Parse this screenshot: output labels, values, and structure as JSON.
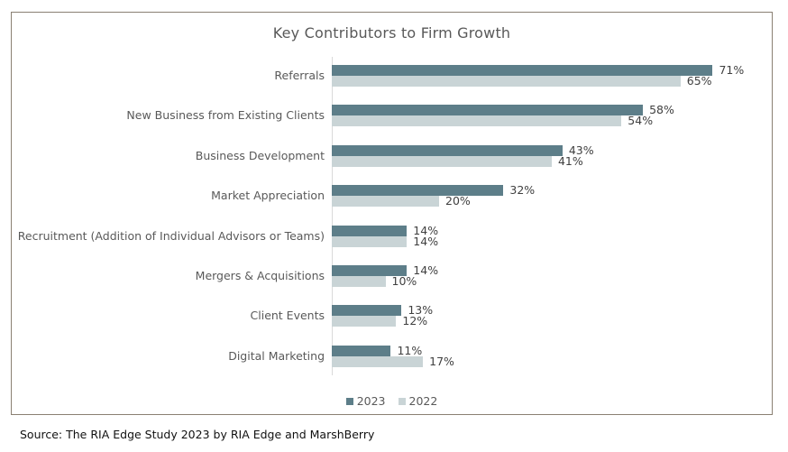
{
  "title": "Key Contributors to Firm Growth",
  "source": "Source: The RIA Edge Study 2023 by RIA Edge and MarshBerry",
  "colors": {
    "bar_2023": "#5d7e89",
    "bar_2022": "#c9d4d6",
    "title_text": "#595959",
    "category_text": "#595959",
    "value_text": "#404040",
    "panel_border": "#8a8073",
    "axis_line": "#d9d9d9"
  },
  "chart_data": {
    "type": "bar",
    "orientation": "horizontal",
    "title": "Key Contributors to Firm Growth",
    "categories": [
      "Referrals",
      "New Business from Existing Clients",
      "Business Development",
      "Market Appreciation",
      "Recruitment (Addition of Individual Advisors or Teams)",
      "Mergers & Acquisitions",
      "Client Events",
      "Digital Marketing"
    ],
    "series": [
      {
        "name": "2023",
        "color": "#5d7e89",
        "values": [
          71,
          58,
          43,
          32,
          14,
          14,
          13,
          11
        ]
      },
      {
        "name": "2022",
        "color": "#c9d4d6",
        "values": [
          65,
          54,
          41,
          20,
          14,
          10,
          12,
          17
        ]
      }
    ],
    "value_suffix": "%",
    "xlim": [
      0,
      82
    ],
    "grid": false,
    "legend_position": "bottom",
    "data_labels": true
  }
}
